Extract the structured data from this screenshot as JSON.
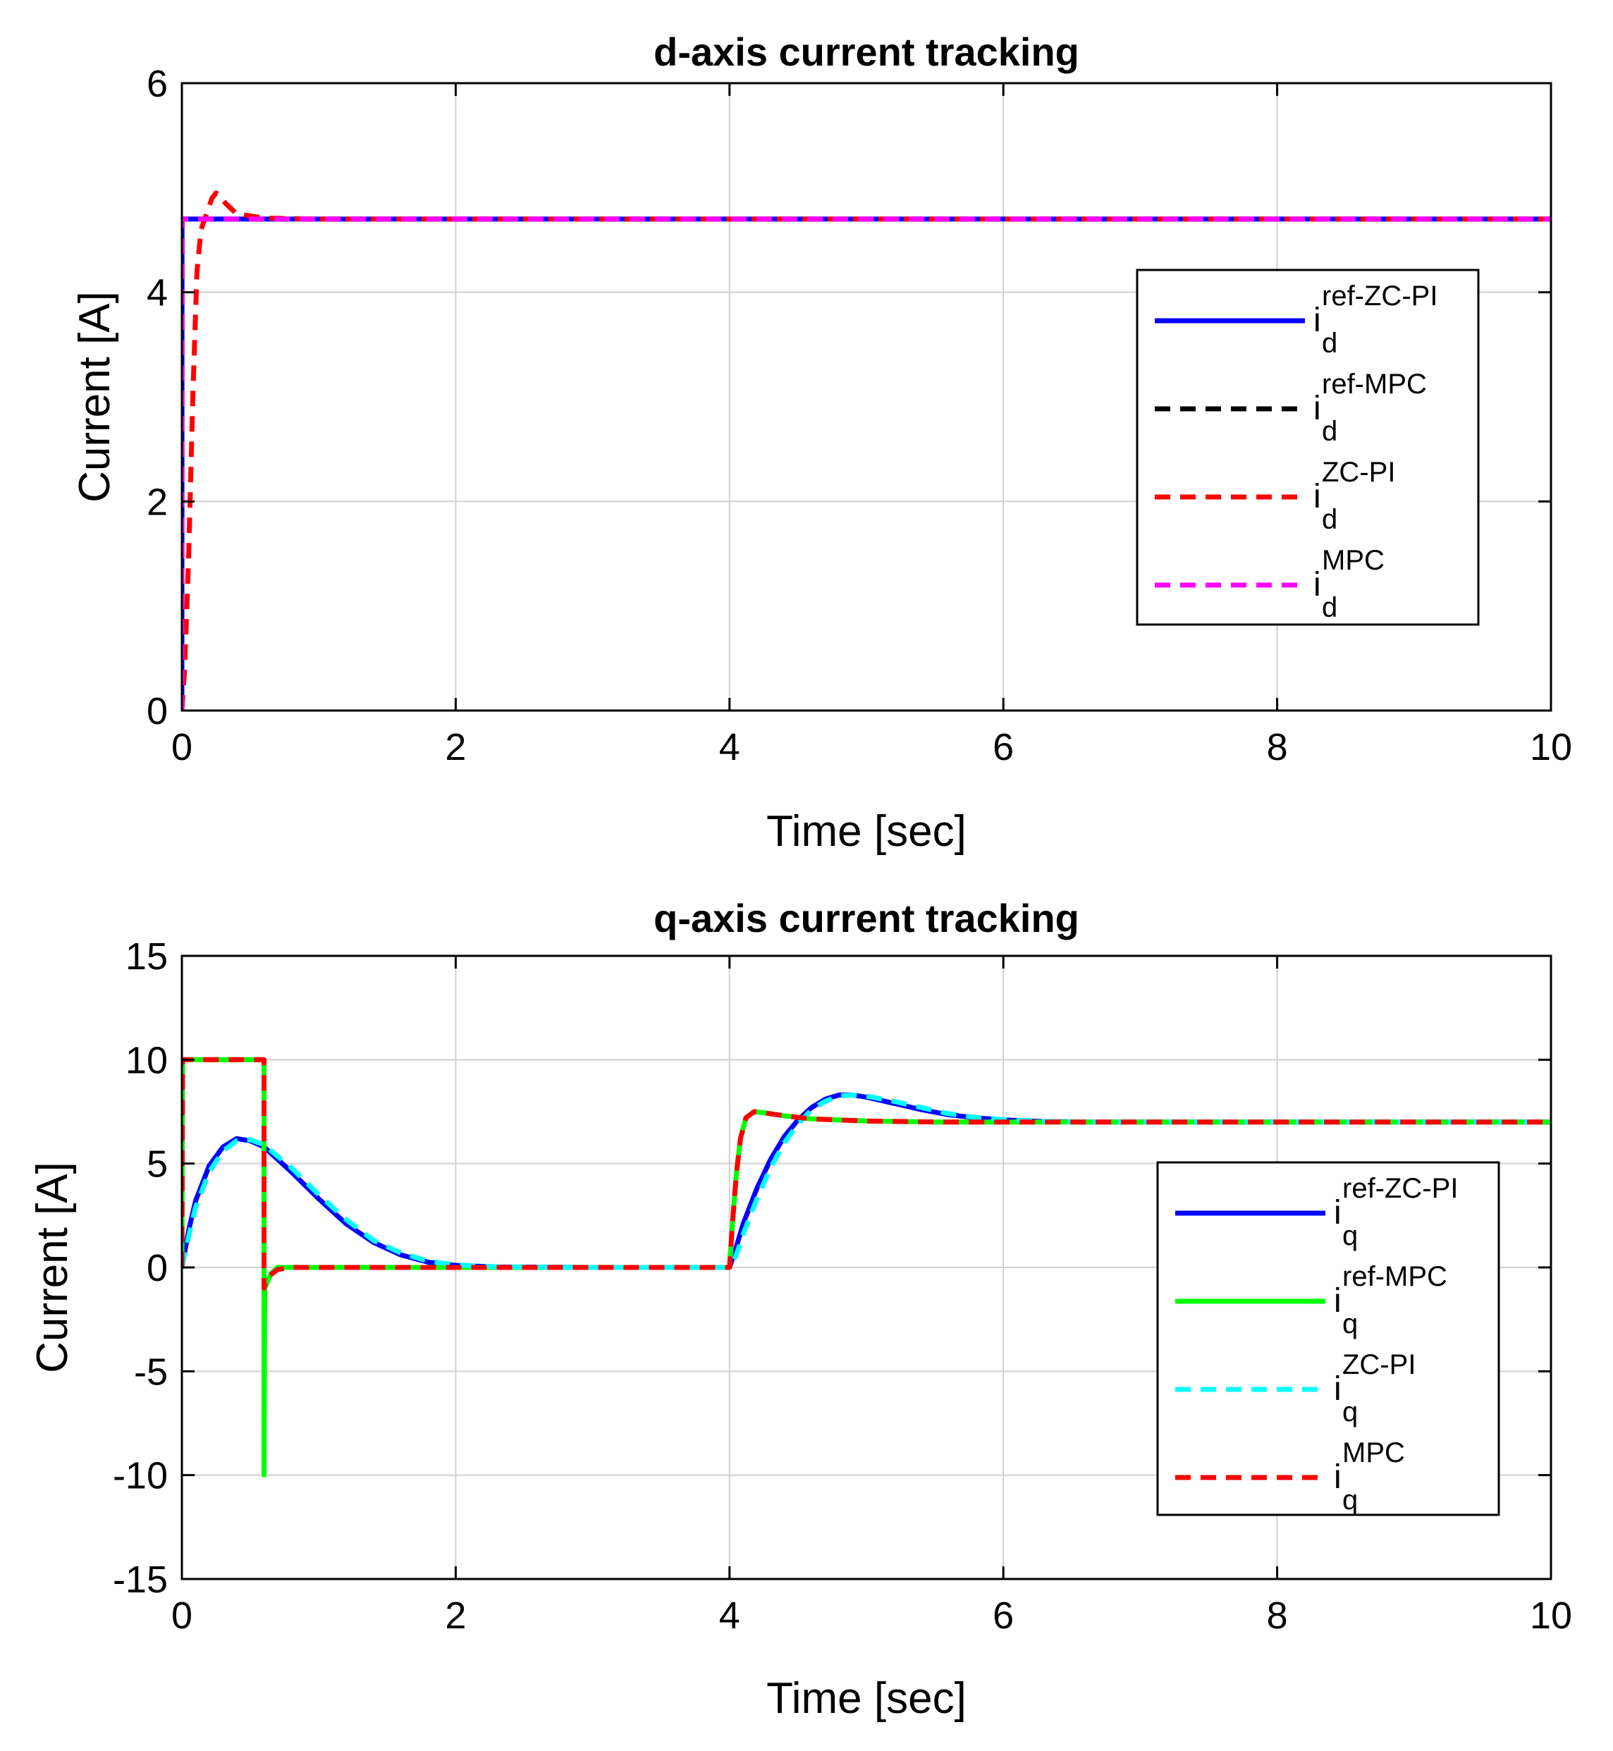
{
  "chart_data": [
    {
      "type": "line",
      "title": "d-axis current tracking",
      "xlabel": "Time [sec]",
      "ylabel": "Current [A]",
      "xlim": [
        0,
        10
      ],
      "ylim": [
        0,
        6
      ],
      "xticks": [
        0,
        2,
        4,
        6,
        8,
        10
      ],
      "yticks": [
        0,
        2,
        4,
        6
      ],
      "xtick_labels": [
        "0",
        "2",
        "4",
        "6",
        "8",
        "10"
      ],
      "ytick_labels": [
        "0",
        "2",
        "4",
        "6"
      ],
      "grid": true,
      "legend": [
        {
          "base": "i",
          "sub": "d",
          "sup": "ref-ZC-PI",
          "color": "#0000ff",
          "dash": false
        },
        {
          "base": "i",
          "sub": "d",
          "sup": "ref-MPC",
          "color": "#000000",
          "dash": true
        },
        {
          "base": "i",
          "sub": "d",
          "sup": "ZC-PI",
          "color": "#ff0000",
          "dash": true
        },
        {
          "base": "i",
          "sub": "d",
          "sup": "MPC",
          "color": "#ff00ff",
          "dash": true
        }
      ],
      "series": [
        {
          "name": "id ref-ZC-PI",
          "color": "#0000ff",
          "dash": false,
          "points": [
            [
              0,
              0
            ],
            [
              0.001,
              4.7
            ],
            [
              10,
              4.7
            ]
          ]
        },
        {
          "name": "id ref-MPC",
          "color": "#000000",
          "dash": true,
          "points": [
            [
              0,
              0
            ],
            [
              0.001,
              4.7
            ],
            [
              10,
              4.7
            ]
          ]
        },
        {
          "name": "id ZC-PI",
          "color": "#ff0000",
          "dash": true,
          "points": [
            [
              0,
              0
            ],
            [
              0.02,
              0.4
            ],
            [
              0.05,
              1.5
            ],
            [
              0.08,
              3.0
            ],
            [
              0.11,
              4.2
            ],
            [
              0.14,
              4.6
            ],
            [
              0.18,
              4.75
            ],
            [
              0.22,
              4.9
            ],
            [
              0.25,
              4.95
            ],
            [
              0.28,
              4.92
            ],
            [
              0.32,
              4.85
            ],
            [
              0.4,
              4.75
            ],
            [
              0.6,
              4.71
            ],
            [
              1.0,
              4.7
            ],
            [
              10,
              4.7
            ]
          ]
        },
        {
          "name": "id MPC",
          "color": "#ff00ff",
          "dash": true,
          "points": [
            [
              0,
              0
            ],
            [
              0.001,
              4.7
            ],
            [
              10,
              4.7
            ]
          ]
        }
      ]
    },
    {
      "type": "line",
      "title": "q-axis current tracking",
      "xlabel": "Time [sec]",
      "ylabel": "Current [A]",
      "xlim": [
        0,
        10
      ],
      "ylim": [
        -15,
        15
      ],
      "xticks": [
        0,
        2,
        4,
        6,
        8,
        10
      ],
      "yticks": [
        -15,
        -10,
        -5,
        0,
        5,
        10,
        15
      ],
      "xtick_labels": [
        "0",
        "2",
        "4",
        "6",
        "8",
        "10"
      ],
      "ytick_labels": [
        "-15",
        "-10",
        "-5",
        "0",
        "5",
        "10",
        "15"
      ],
      "grid": true,
      "legend": [
        {
          "base": "i",
          "sub": "q",
          "sup": "ref-ZC-PI",
          "color": "#0000ff",
          "dash": false
        },
        {
          "base": "i",
          "sub": "q",
          "sup": "ref-MPC",
          "color": "#00ff00",
          "dash": false
        },
        {
          "base": "i",
          "sub": "q",
          "sup": "ZC-PI",
          "color": "#00ffff",
          "dash": true
        },
        {
          "base": "i",
          "sub": "q",
          "sup": "MPC",
          "color": "#ff0000",
          "dash": true
        }
      ],
      "series": [
        {
          "name": "iq ref-ZC-PI",
          "color": "#0000ff",
          "dash": false,
          "points": [
            [
              0,
              0
            ],
            [
              0.05,
              1.8
            ],
            [
              0.1,
              3.2
            ],
            [
              0.2,
              4.9
            ],
            [
              0.3,
              5.8
            ],
            [
              0.4,
              6.2
            ],
            [
              0.5,
              6.1
            ],
            [
              0.6,
              5.8
            ],
            [
              0.8,
              4.6
            ],
            [
              1.0,
              3.3
            ],
            [
              1.2,
              2.1
            ],
            [
              1.4,
              1.2
            ],
            [
              1.6,
              0.6
            ],
            [
              1.8,
              0.25
            ],
            [
              2.0,
              0.1
            ],
            [
              2.3,
              0.02
            ],
            [
              3.0,
              0
            ],
            [
              4.0,
              0
            ],
            [
              4.05,
              1.0
            ],
            [
              4.1,
              2.1
            ],
            [
              4.2,
              3.8
            ],
            [
              4.3,
              5.2
            ],
            [
              4.4,
              6.3
            ],
            [
              4.5,
              7.1
            ],
            [
              4.6,
              7.7
            ],
            [
              4.7,
              8.1
            ],
            [
              4.8,
              8.3
            ],
            [
              4.9,
              8.3
            ],
            [
              5.0,
              8.2
            ],
            [
              5.2,
              7.9
            ],
            [
              5.4,
              7.6
            ],
            [
              5.6,
              7.35
            ],
            [
              5.8,
              7.2
            ],
            [
              6.0,
              7.1
            ],
            [
              6.3,
              7.02
            ],
            [
              6.6,
              7.0
            ],
            [
              10,
              7.0
            ]
          ]
        },
        {
          "name": "iq ref-MPC",
          "color": "#00ff00",
          "dash": false,
          "points": [
            [
              0,
              0
            ],
            [
              0.005,
              10
            ],
            [
              0.6,
              10
            ],
            [
              0.6,
              -10
            ],
            [
              0.605,
              -1
            ],
            [
              0.65,
              -0.3
            ],
            [
              0.7,
              0
            ],
            [
              4.0,
              0
            ],
            [
              4.02,
              2.0
            ],
            [
              4.05,
              4.5
            ],
            [
              4.08,
              6.2
            ],
            [
              4.12,
              7.2
            ],
            [
              4.18,
              7.5
            ],
            [
              4.25,
              7.45
            ],
            [
              4.4,
              7.3
            ],
            [
              4.6,
              7.15
            ],
            [
              5.0,
              7.05
            ],
            [
              5.5,
              7.0
            ],
            [
              10,
              7.0
            ]
          ]
        },
        {
          "name": "iq ZC-PI",
          "color": "#00ffff",
          "dash": true,
          "points": [
            [
              0,
              0
            ],
            [
              0.05,
              1.5
            ],
            [
              0.1,
              2.9
            ],
            [
              0.2,
              4.6
            ],
            [
              0.3,
              5.6
            ],
            [
              0.4,
              6.1
            ],
            [
              0.5,
              6.15
            ],
            [
              0.6,
              5.9
            ],
            [
              0.8,
              4.8
            ],
            [
              1.0,
              3.5
            ],
            [
              1.2,
              2.3
            ],
            [
              1.4,
              1.3
            ],
            [
              1.6,
              0.7
            ],
            [
              1.8,
              0.3
            ],
            [
              2.0,
              0.12
            ],
            [
              2.3,
              0.03
            ],
            [
              3.0,
              0
            ],
            [
              4.0,
              0
            ],
            [
              4.05,
              0.6
            ],
            [
              4.1,
              1.6
            ],
            [
              4.2,
              3.3
            ],
            [
              4.3,
              4.8
            ],
            [
              4.4,
              6.0
            ],
            [
              4.5,
              6.9
            ],
            [
              4.6,
              7.6
            ],
            [
              4.7,
              8.0
            ],
            [
              4.8,
              8.25
            ],
            [
              4.9,
              8.3
            ],
            [
              5.0,
              8.25
            ],
            [
              5.2,
              8.0
            ],
            [
              5.4,
              7.7
            ],
            [
              5.6,
              7.4
            ],
            [
              5.8,
              7.22
            ],
            [
              6.0,
              7.12
            ],
            [
              6.3,
              7.03
            ],
            [
              6.6,
              7.0
            ],
            [
              10,
              7.0
            ]
          ]
        },
        {
          "name": "iq MPC",
          "color": "#ff0000",
          "dash": true,
          "points": [
            [
              0,
              0
            ],
            [
              0.005,
              10
            ],
            [
              0.6,
              10
            ],
            [
              0.6,
              -1
            ],
            [
              0.62,
              -0.5
            ],
            [
              0.7,
              -0.1
            ],
            [
              0.8,
              0
            ],
            [
              4.0,
              0
            ],
            [
              4.02,
              2.0
            ],
            [
              4.05,
              4.5
            ],
            [
              4.08,
              6.2
            ],
            [
              4.12,
              7.2
            ],
            [
              4.18,
              7.5
            ],
            [
              4.25,
              7.45
            ],
            [
              4.4,
              7.3
            ],
            [
              4.6,
              7.15
            ],
            [
              5.0,
              7.05
            ],
            [
              5.5,
              7.0
            ],
            [
              10,
              7.0
            ]
          ]
        }
      ]
    }
  ]
}
